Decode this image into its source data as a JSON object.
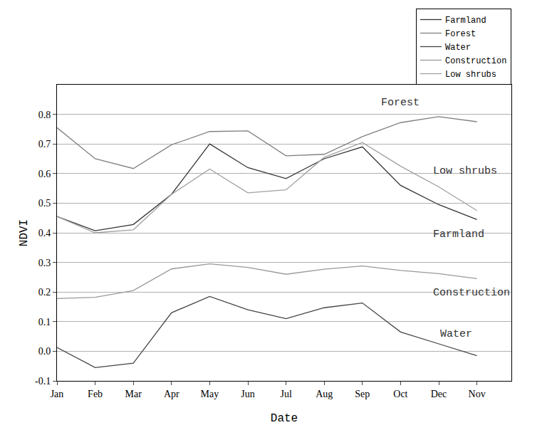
{
  "chart_data": {
    "type": "line",
    "x_label": "Date",
    "y_label": "NDVI",
    "categories": [
      "Jan",
      "Feb",
      "Mar",
      "Apr",
      "May",
      "Jun",
      "Jul",
      "Aug",
      "Sep",
      "Oct",
      "Dec",
      "Nov"
    ],
    "series": [
      {
        "name": "Farmland",
        "color": "#333333",
        "values": [
          0.455,
          0.407,
          0.428,
          0.53,
          0.7,
          0.62,
          0.583,
          0.65,
          0.69,
          0.56,
          0.495,
          0.445
        ]
      },
      {
        "name": "Forest",
        "color": "#808080",
        "values": [
          0.755,
          0.65,
          0.617,
          0.697,
          0.742,
          0.744,
          0.66,
          0.665,
          0.725,
          0.772,
          0.792,
          0.775
        ]
      },
      {
        "name": "Water",
        "color": "#444444",
        "values": [
          0.013,
          -0.055,
          -0.04,
          0.13,
          0.185,
          0.14,
          0.11,
          0.147,
          0.163,
          0.065,
          0.025,
          -0.015
        ]
      },
      {
        "name": "Construction",
        "color": "#999999",
        "values": [
          0.178,
          0.182,
          0.205,
          0.278,
          0.295,
          0.283,
          0.26,
          0.277,
          0.288,
          0.273,
          0.262,
          0.245
        ]
      },
      {
        "name": "Low shrubs",
        "color": "#a0a0a0",
        "values": [
          0.455,
          0.4,
          0.41,
          0.53,
          0.615,
          0.535,
          0.545,
          0.655,
          0.705,
          0.625,
          0.555,
          0.475
        ]
      }
    ],
    "ylim": [
      -0.1,
      0.9
    ],
    "yticks": [
      -0.1,
      {
        "value": 0,
        "label": "0.0"
      },
      0.1,
      0.2,
      0.3,
      0.4,
      0.5,
      0.6,
      0.7,
      0.8
    ],
    "grid": true,
    "legend": "top right",
    "annotations": [
      "Forest",
      "Low shrubs",
      "Farmland",
      "Construction",
      "Water"
    ]
  }
}
